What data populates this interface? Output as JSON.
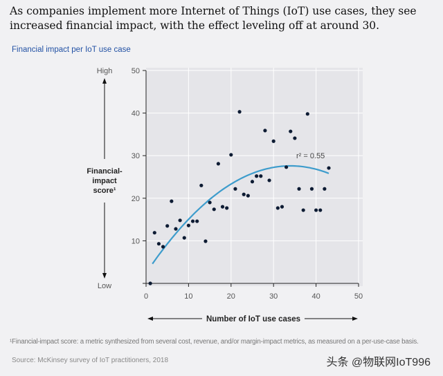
{
  "title": "As companies implement more Internet of Things (IoT) use cases, they see increased financial impact, with the effect leveling off at around 30.",
  "subtitle": "Financial impact per IoT use case",
  "footnote": "¹Financial-impact score: a metric synthesized from several cost, revenue, and/or margin-impact metrics, as measured on a per-use-case basis.",
  "source": "Source: McKinsey survey of IoT practitioners, 2018",
  "watermark": "头条 @物联网IoT996",
  "chart_data": {
    "type": "scatter",
    "xlabel": "Number of IoT use cases",
    "ylabel": "Financial-impact score¹",
    "ylabel_lines": [
      "Financial-",
      "impact",
      "score¹"
    ],
    "y_high_label": "High",
    "y_low_label": "Low",
    "xlim": [
      0,
      50
    ],
    "ylim": [
      0,
      50
    ],
    "xticks": [
      "0",
      "10",
      "20",
      "30",
      "40",
      "50"
    ],
    "yticks": [
      "10",
      "20",
      "30",
      "40",
      "50"
    ],
    "grid": true,
    "point_color": "#0d1b33",
    "trend_color": "#3d9ccc",
    "annotation": "r² = 0.55",
    "points": [
      [
        1,
        0
      ],
      [
        2,
        11.9
      ],
      [
        3,
        9.3
      ],
      [
        4,
        8.6
      ],
      [
        5,
        13.5
      ],
      [
        6,
        19.3
      ],
      [
        7,
        12.8
      ],
      [
        8,
        14.8
      ],
      [
        9,
        10.7
      ],
      [
        10,
        13.6
      ],
      [
        11,
        14.6
      ],
      [
        12,
        14.6
      ],
      [
        13,
        23
      ],
      [
        14,
        9.9
      ],
      [
        15,
        19
      ],
      [
        16,
        17.4
      ],
      [
        17,
        28.1
      ],
      [
        18,
        18
      ],
      [
        19,
        17.7
      ],
      [
        20,
        30.2
      ],
      [
        21,
        22.2
      ],
      [
        22,
        40.3
      ],
      [
        23,
        20.9
      ],
      [
        24,
        20.6
      ],
      [
        25,
        23.9
      ],
      [
        26,
        25.2
      ],
      [
        27,
        25.2
      ],
      [
        28,
        35.9
      ],
      [
        29,
        24.2
      ],
      [
        30,
        33.4
      ],
      [
        31,
        17.7
      ],
      [
        32,
        18
      ],
      [
        33,
        27.3
      ],
      [
        34,
        35.7
      ],
      [
        35,
        34.1
      ],
      [
        36,
        22.2
      ],
      [
        37,
        17.2
      ],
      [
        38,
        39.8
      ],
      [
        39,
        22.2
      ],
      [
        40,
        17.2
      ],
      [
        41,
        17.2
      ],
      [
        42,
        22.2
      ],
      [
        43,
        27.1
      ]
    ],
    "trendline": {
      "type": "quadratic",
      "x_range": [
        1.5,
        43
      ],
      "coefficients": {
        "a": -0.02178,
        "b": 1.481,
        "c": 2.42
      }
    }
  }
}
